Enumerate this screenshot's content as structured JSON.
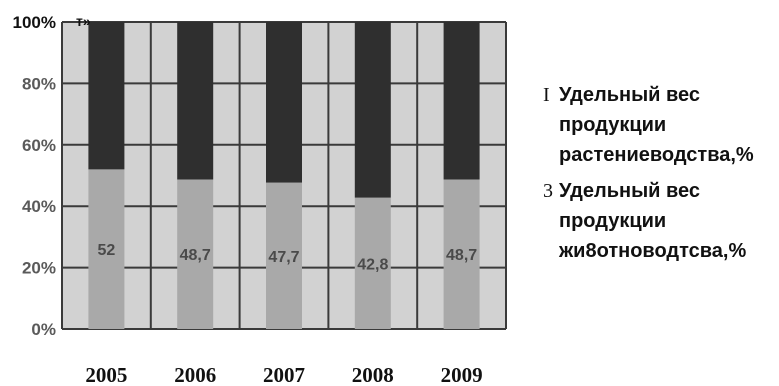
{
  "chart_data": {
    "type": "bar",
    "stacked": true,
    "categories": [
      "2005",
      "2006",
      "2007",
      "2008",
      "2009"
    ],
    "series": [
      {
        "name": "Удельный вес продукции жи8отноводтсва,%",
        "values": [
          52,
          48.7,
          47.7,
          42.8,
          48.7
        ],
        "data_labels": [
          "52",
          "48,7",
          "47,7",
          "42,8",
          "48,7"
        ],
        "color": "#a9a9a9"
      },
      {
        "name": "Удельный вес продукции растениеводства,%",
        "values": [
          48,
          51.3,
          52.3,
          57.2,
          51.3
        ],
        "color": "#2f2f2f"
      }
    ],
    "yticks": [
      "0%",
      "20%",
      "40%",
      "60%",
      "80%",
      "100%"
    ],
    "ylim": [
      0,
      100
    ],
    "corner_text": "т»",
    "grid": true,
    "legend": {
      "position": "right",
      "items": [
        {
          "marker": "I",
          "label": "Удельный вес продукции растениеводства,%",
          "lines": [
            "Удельный вес",
            "продукции",
            "растениеводства,%"
          ]
        },
        {
          "marker": "3",
          "label": "Удельный вес продукции жи8отноводтсва,%",
          "lines": [
            "Удельный вес",
            "продукции",
            "жи8отноводтсва,%"
          ]
        }
      ]
    },
    "colors": {
      "plot_background": "#d2d2d2",
      "gridline": "#3a3a3a",
      "axis_text": "#5a5a5a",
      "category_text": "#111111",
      "lower_segment": "#a9a9a9",
      "upper_segment": "#2f2f2f"
    }
  }
}
